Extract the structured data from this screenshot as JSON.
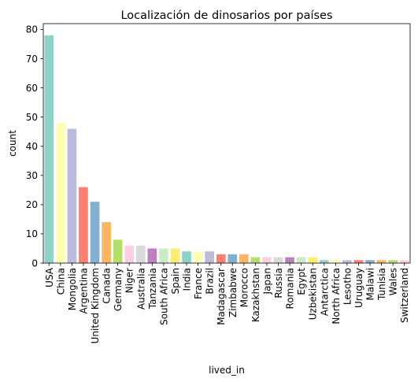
{
  "chart_data": {
    "type": "bar",
    "title": "Localización de dinosarios por países",
    "xlabel": "lived_in",
    "ylabel": "count",
    "ylim": [
      0,
      82
    ],
    "yticks": [
      0,
      10,
      20,
      30,
      40,
      50,
      60,
      70,
      80
    ],
    "grid": false,
    "categories": [
      "USA",
      "China",
      "Mongolia",
      "Argentina",
      "United Kingdom",
      "Canada",
      "Germany",
      "Niger",
      "Australia",
      "Tanzania",
      "South Africa",
      "Spain",
      "India",
      "France",
      "Brazil",
      "Madagascar",
      "Zimbabwe",
      "Morocco",
      "Kazakhstan",
      "Japan",
      "Russia",
      "Romania",
      "Egypt",
      "Uzbekistan",
      "Antarctica",
      "North Africa",
      "Lesotho",
      "Uruguay",
      "Malawi",
      "Tunisia",
      "Wales",
      "Switzerland"
    ],
    "values": [
      78,
      48,
      46,
      26,
      21,
      14,
      8,
      6,
      6,
      5,
      5,
      5,
      4,
      4,
      4,
      3,
      3,
      3,
      2,
      2,
      2,
      2,
      2,
      2,
      1,
      1,
      1,
      1,
      1,
      1,
      1,
      1
    ],
    "colors": [
      "#8dd3c7",
      "#ffffb3",
      "#bebada",
      "#fb8072",
      "#80b1d3",
      "#fdb462",
      "#b3de69",
      "#fccde5",
      "#d9d9d9",
      "#bc80bd",
      "#ccebc5",
      "#ffed6f"
    ]
  }
}
